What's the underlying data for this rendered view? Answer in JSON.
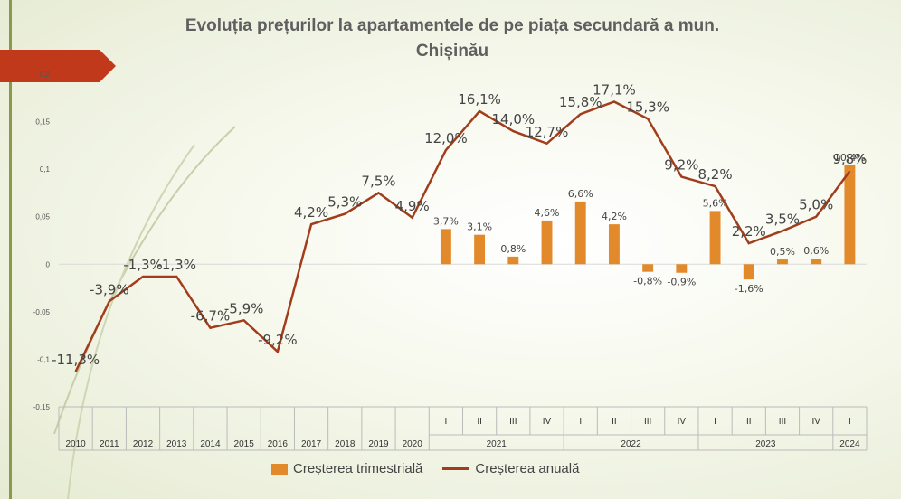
{
  "title_line1": "Evoluția prețurilor la apartamentele de pe piața secundară a mun.",
  "title_line2": "Chișinău",
  "colors": {
    "bars": "#e28a2b",
    "line": "#a13d1c",
    "accent": "#c0391b"
  },
  "chart_data": {
    "type": "bar+line",
    "ylim": [
      -0.15,
      0.2
    ],
    "yticks": [
      "0,2",
      "0,15",
      "0,1",
      "0,05",
      "0",
      "-0,05",
      "-0,1",
      "-0,15"
    ],
    "ytick_values": [
      0.2,
      0.15,
      0.1,
      0.05,
      0,
      -0.05,
      -0.1,
      -0.15
    ],
    "categories": [
      "2010",
      "2011",
      "2012",
      "2013",
      "2014",
      "2015",
      "2016",
      "2017",
      "2018",
      "2019",
      "2020",
      "I",
      "II",
      "III",
      "IV",
      "I",
      "II",
      "III",
      "IV",
      "I",
      "II",
      "III",
      "IV",
      "I"
    ],
    "year_groups": [
      {
        "label": "2021",
        "start": 11,
        "count": 4
      },
      {
        "label": "2022",
        "start": 15,
        "count": 4
      },
      {
        "label": "2023",
        "start": 19,
        "count": 4
      },
      {
        "label": "2024",
        "start": 23,
        "count": 1
      }
    ],
    "series": [
      {
        "name": "Creșterea trimestrială",
        "kind": "bar",
        "values": [
          null,
          null,
          null,
          null,
          null,
          null,
          null,
          null,
          null,
          null,
          null,
          0.037,
          0.031,
          0.008,
          0.046,
          0.066,
          0.042,
          -0.008,
          -0.009,
          0.056,
          -0.016,
          0.005,
          0.006,
          0.104
        ],
        "labels": [
          null,
          null,
          null,
          null,
          null,
          null,
          null,
          null,
          null,
          null,
          null,
          "3,7%",
          "3,1%",
          "0,8%",
          "4,6%",
          "6,6%",
          "4,2%",
          "-0,8%",
          "-0,9%",
          "5,6%",
          "-1,6%",
          "0,5%",
          "0,6%",
          "10,4%"
        ]
      },
      {
        "name": "Creșterea anuală",
        "kind": "line",
        "values": [
          -0.113,
          -0.039,
          -0.013,
          -0.013,
          -0.067,
          -0.059,
          -0.092,
          0.042,
          0.053,
          0.075,
          0.049,
          0.12,
          0.161,
          0.14,
          0.127,
          0.158,
          0.171,
          0.153,
          0.092,
          0.082,
          0.022,
          0.035,
          0.05,
          0.098
        ],
        "labels": [
          "-11,3%",
          "-3,9%",
          "-1,3%",
          "-1,3%",
          "-6,7%",
          "-5,9%",
          "-9,2%",
          "4,2%",
          "5,3%",
          "7,5%",
          "4,9%",
          "12,0%",
          "16,1%",
          "14,0%",
          "12,7%",
          "15,8%",
          "17,1%",
          "15,3%",
          "9,2%",
          "8,2%",
          "2,2%",
          "3,5%",
          "5,0%",
          "9,8%"
        ]
      }
    ],
    "legend_position": "bottom"
  }
}
